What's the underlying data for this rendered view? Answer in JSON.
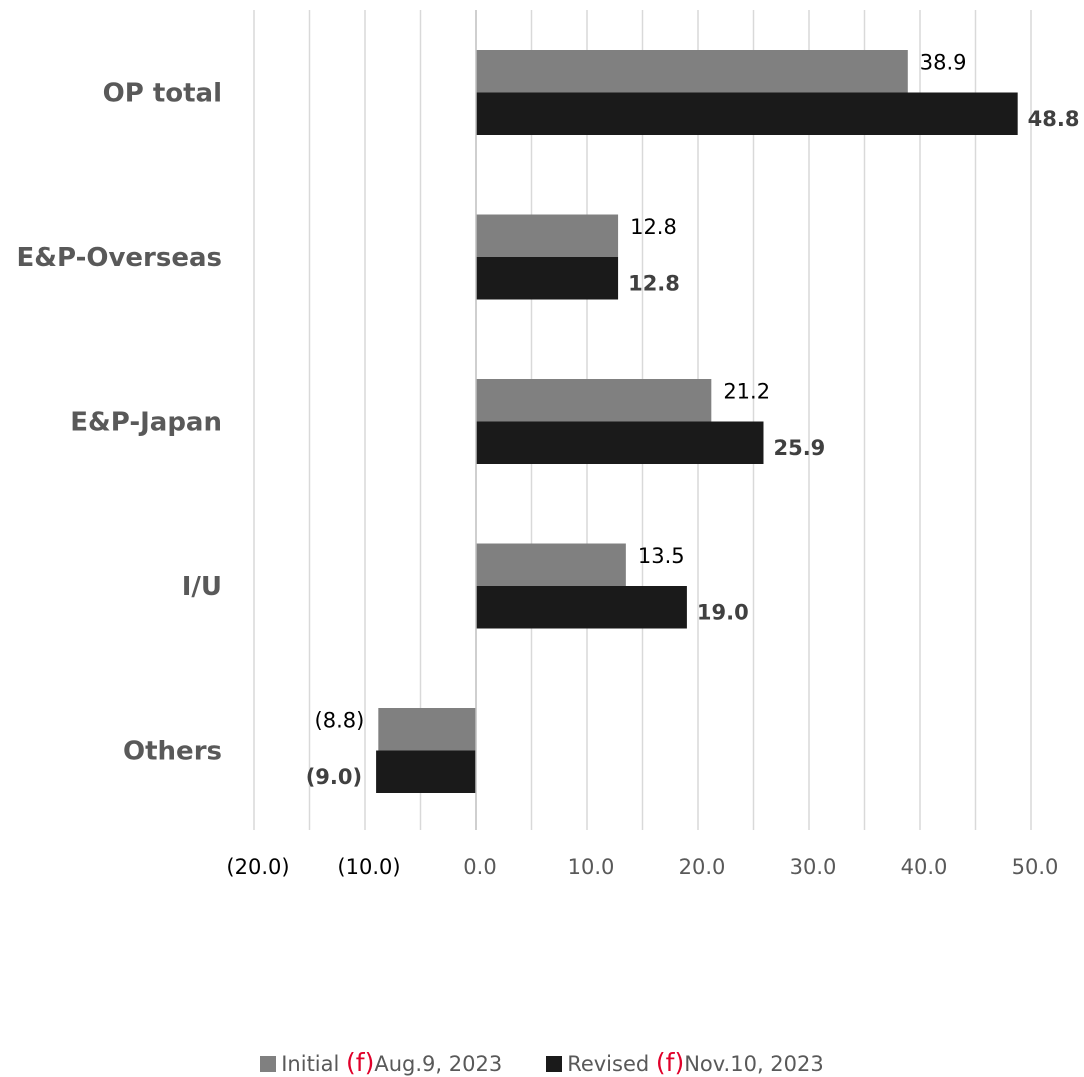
{
  "chart_data": {
    "type": "bar",
    "orientation": "horizontal",
    "categories": [
      "OP total",
      "E&P-Overseas",
      "E&P-Japan",
      "I/U",
      "Others"
    ],
    "series": [
      {
        "legend_prefix": "Initial ",
        "legend_marker": "(f)",
        "legend_suffix": "Aug.9, 2023",
        "color": "#808080",
        "values": [
          38.9,
          12.8,
          21.2,
          13.5,
          -8.8
        ],
        "labels": [
          "38.9",
          "12.8",
          "21.2",
          "13.5",
          "(8.8)"
        ]
      },
      {
        "legend_prefix": "Revised ",
        "legend_marker": "(f)",
        "legend_suffix": "Nov.10, 2023",
        "color": "#1a1a1a",
        "values": [
          48.8,
          12.8,
          25.9,
          19.0,
          -9.0
        ],
        "labels": [
          "48.8",
          "12.8",
          "25.9",
          "19.0",
          "(9.0)"
        ]
      }
    ],
    "x_ticks": [
      -20,
      -10,
      0,
      10,
      20,
      30,
      40,
      50
    ],
    "x_tick_labels": [
      "(20.0)",
      "(10.0)",
      "0.0",
      "10.0",
      "20.0",
      "30.0",
      "40.0",
      "50.0"
    ],
    "xlim": [
      -20,
      55
    ],
    "grid": true,
    "legend_position": "bottom",
    "marker_color": "#e0002a"
  }
}
